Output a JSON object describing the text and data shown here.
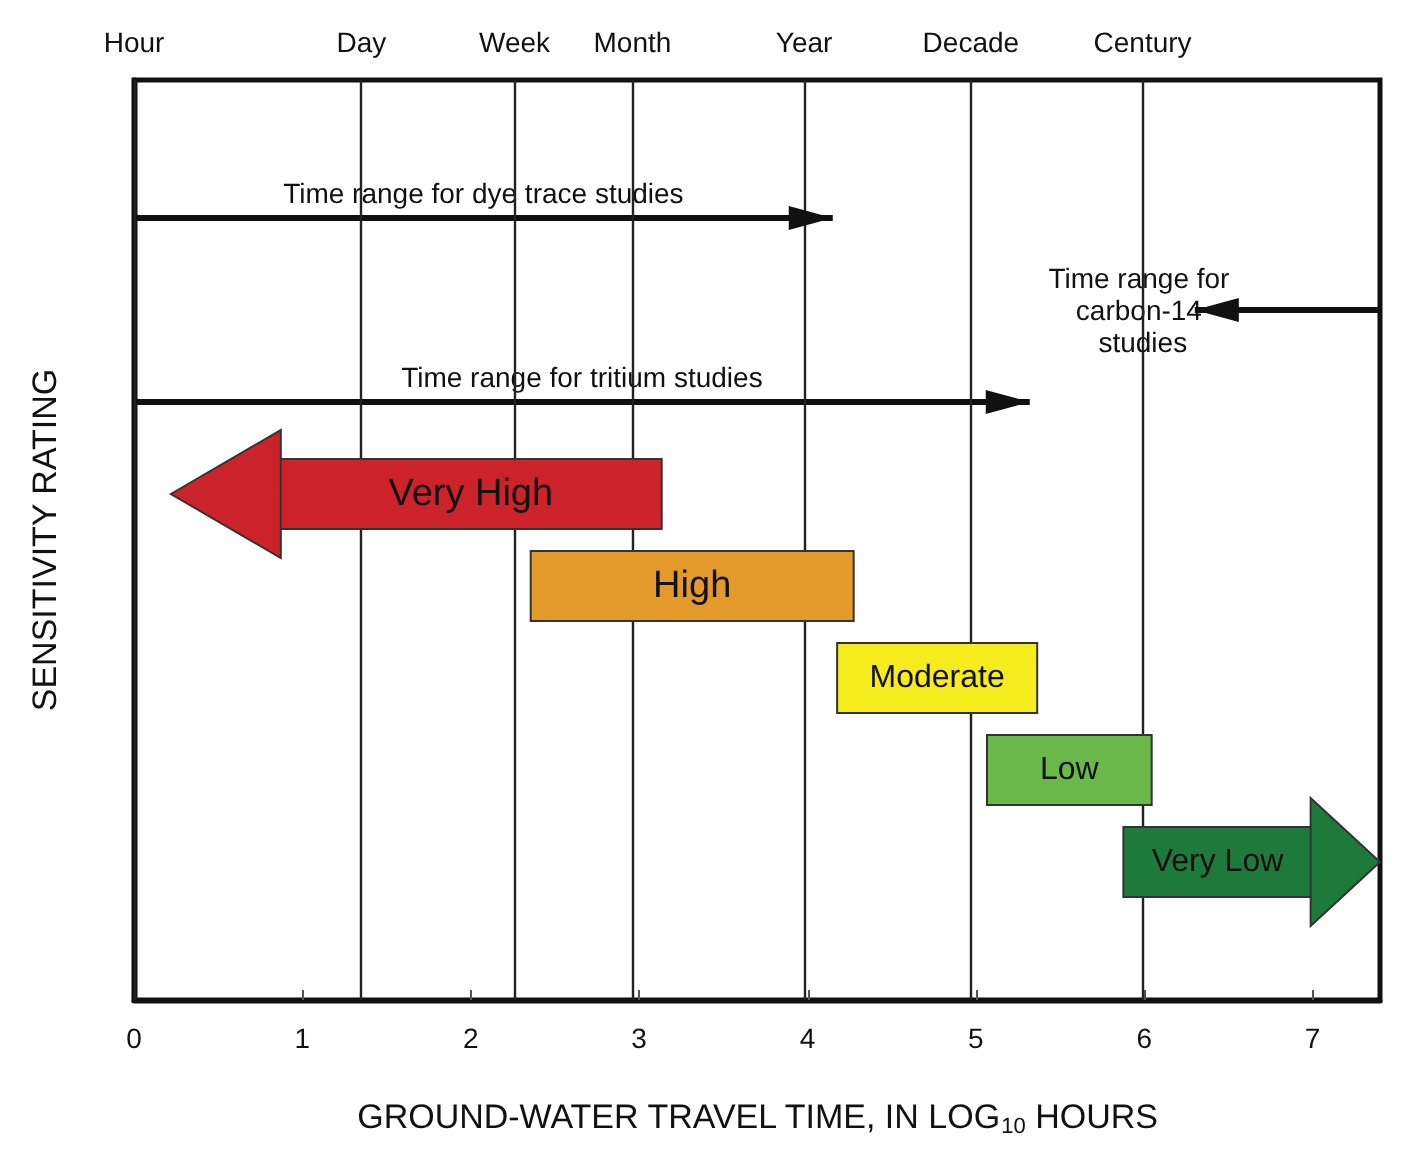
{
  "chart_data": {
    "type": "bar",
    "orientation": "horizontal",
    "xlabel": "GROUND-WATER TRAVEL TIME, IN LOG$_{10}$ HOURS",
    "ylabel": "SENSITIVITY RATING",
    "categories": [
      null,
      null,
      null,
      null,
      null,
      null,
      null,
      null,
      null,
      null
    ],
    "series": [
      {
        "color": "#111111",
        "base": [
          null,
          0,
          6.3,
          0,
          null,
          null,
          null,
          null,
          null,
          null
        ],
        "values": [
          null,
          4.15,
          1.1,
          5.32,
          null,
          null,
          null,
          null,
          null,
          null
        ],
        "value_labels": [
          null,
          "Time range for dye trace studies",
          "Time range for carbon-14 studies",
          "Time range for tritium studies",
          null,
          null,
          null,
          null,
          null,
          null
        ]
      },
      {
        "base": [
          null,
          null,
          null,
          null,
          0.86,
          2.35,
          4.17,
          5.06,
          5.87,
          null
        ],
        "colors": [
          null,
          null,
          null,
          null,
          "#cc2229",
          "#e39a2a",
          "#f4ec1c",
          "#6ab84a",
          "#1e7a3a",
          null
        ],
        "values": [
          null,
          null,
          null,
          null,
          2.28,
          1.93,
          1.2,
          0.99,
          1.13,
          null
        ],
        "value_labels": [
          null,
          null,
          null,
          null,
          "Very High",
          "High",
          "Moderate",
          "Low",
          "Very Low",
          null
        ]
      }
    ],
    "xlim": [
      0,
      7.4
    ],
    "xticks": [
      0,
      1,
      2,
      3,
      4,
      5,
      6,
      7
    ],
    "ref_lines": [
      {
        "axis": "x",
        "value": 0,
        "label": "Hour"
      },
      {
        "axis": "x",
        "value": 1.35,
        "label": "Day"
      },
      {
        "axis": "x",
        "value": 2.26,
        "label": "Week"
      },
      {
        "axis": "x",
        "value": 2.96,
        "label": "Month"
      },
      {
        "axis": "x",
        "value": 3.98,
        "label": "Year"
      },
      {
        "axis": "x",
        "value": 4.97,
        "label": "Decade"
      },
      {
        "axis": "x",
        "value": 5.99,
        "label": "Century"
      }
    ]
  }
}
